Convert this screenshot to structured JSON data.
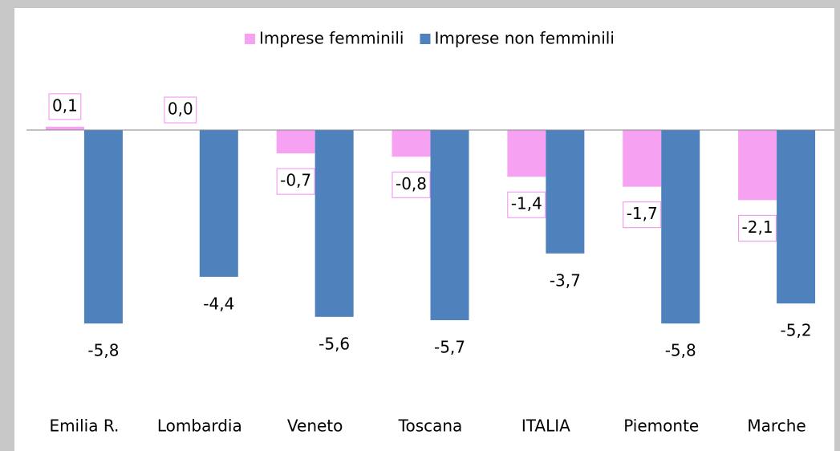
{
  "chart_data": {
    "type": "bar",
    "categories": [
      "Emilia R.",
      "Lombardia",
      "Veneto",
      "Toscana",
      "ITALIA",
      "Piemonte",
      "Marche"
    ],
    "series": [
      {
        "name": "Imprese femminili",
        "color": "#f7a1f2",
        "values": [
          0.1,
          0.0,
          -0.7,
          -0.8,
          -1.4,
          -1.7,
          -2.1
        ],
        "value_labels": [
          "0,1",
          "0,0",
          "-0,7",
          "-0,8",
          "-1,4",
          "-1,7",
          "-2,1"
        ]
      },
      {
        "name": "Imprese non femminili",
        "color": "#4f81bd",
        "values": [
          -5.8,
          -4.4,
          -5.6,
          -5.7,
          -3.7,
          -5.8,
          -5.2
        ],
        "value_labels": [
          "-5,8",
          "-4,4",
          "-5,6",
          "-5,7",
          "-3,7",
          "-5,8",
          "-5,2"
        ]
      }
    ],
    "ylim": [
      -7.0,
      1.3
    ],
    "legend": "top"
  }
}
